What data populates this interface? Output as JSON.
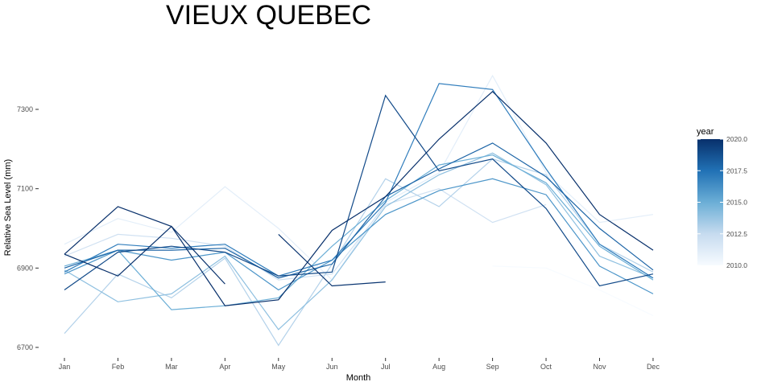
{
  "chart_data": {
    "type": "line",
    "title": "VIEUX QUEBEC",
    "xlabel": "Month",
    "ylabel": "Relative Sea Level (mm)",
    "categories": [
      "Jan",
      "Feb",
      "Mar",
      "Apr",
      "May",
      "Jun",
      "Jul",
      "Aug",
      "Sep",
      "Oct",
      "Nov",
      "Dec"
    ],
    "ylim": [
      6680,
      7470
    ],
    "yticks": [
      6700,
      6900,
      7100,
      7300
    ],
    "grid": false,
    "legend": {
      "title": "year",
      "position": "right",
      "range": [
        2010,
        2020
      ],
      "ticks": [
        "2010.0",
        "2012.5",
        "2015.0",
        "2017.5",
        "2020.0"
      ],
      "color_low": "#f7fbff",
      "color_high": "#08306b"
    },
    "series": [
      {
        "year": 2010,
        "values": [
          null,
          null,
          null,
          null,
          null,
          null,
          null,
          null,
          6905,
          6900,
          6845,
          6780
        ]
      },
      {
        "year": 2011,
        "values": [
          6960,
          7025,
          6990,
          7105,
          7000,
          6870,
          7065,
          7140,
          7385,
          7140,
          7015,
          7035
        ]
      },
      {
        "year": 2012,
        "values": [
          6930,
          6985,
          6975,
          6955,
          6870,
          6885,
          7060,
          7100,
          7015,
          7060,
          null,
          null
        ]
      },
      {
        "year": 2013,
        "values": [
          6735,
          6885,
          6825,
          6925,
          6705,
          6910,
          7125,
          7055,
          7175,
          7135,
          6960,
          6890
        ]
      },
      {
        "year": 2014,
        "values": [
          6895,
          6815,
          6835,
          6930,
          6745,
          6870,
          7055,
          7135,
          7190,
          7110,
          6930,
          6875
        ]
      },
      {
        "year": 2015,
        "values": [
          6905,
          6945,
          6795,
          6805,
          6825,
          6955,
          7070,
          7160,
          7185,
          7115,
          6955,
          6870
        ]
      },
      {
        "year": 2016,
        "values": [
          6885,
          6945,
          6920,
          6940,
          6845,
          6920,
          7035,
          7095,
          7125,
          7085,
          6905,
          6835
        ]
      },
      {
        "year": 2017,
        "values": [
          6890,
          6960,
          6950,
          6960,
          6880,
          6920,
          7065,
          7365,
          7350,
          7150,
          6960,
          6875
        ]
      },
      {
        "year": 2018,
        "values": [
          6900,
          6945,
          6945,
          6950,
          6875,
          6910,
          7080,
          7150,
          7215,
          7130,
          7000,
          6895
        ]
      },
      {
        "year": 2019,
        "values": [
          6845,
          6940,
          6955,
          6940,
          6880,
          6890,
          7335,
          7145,
          7175,
          7050,
          6855,
          6885
        ]
      },
      {
        "year": 2020,
        "values": [
          6935,
          6880,
          7005,
          6805,
          6820,
          6995,
          7080,
          7225,
          7345,
          7215,
          7035,
          6945
        ]
      },
      {
        "year": 2021,
        "values": [
          6935,
          7055,
          7005,
          6860,
          null,
          null,
          null,
          null,
          null,
          null,
          null,
          null
        ]
      },
      {
        "year": 2019.8,
        "values": [
          null,
          null,
          null,
          null,
          6985,
          6855,
          6865,
          null,
          null,
          null,
          null,
          null
        ]
      }
    ]
  }
}
